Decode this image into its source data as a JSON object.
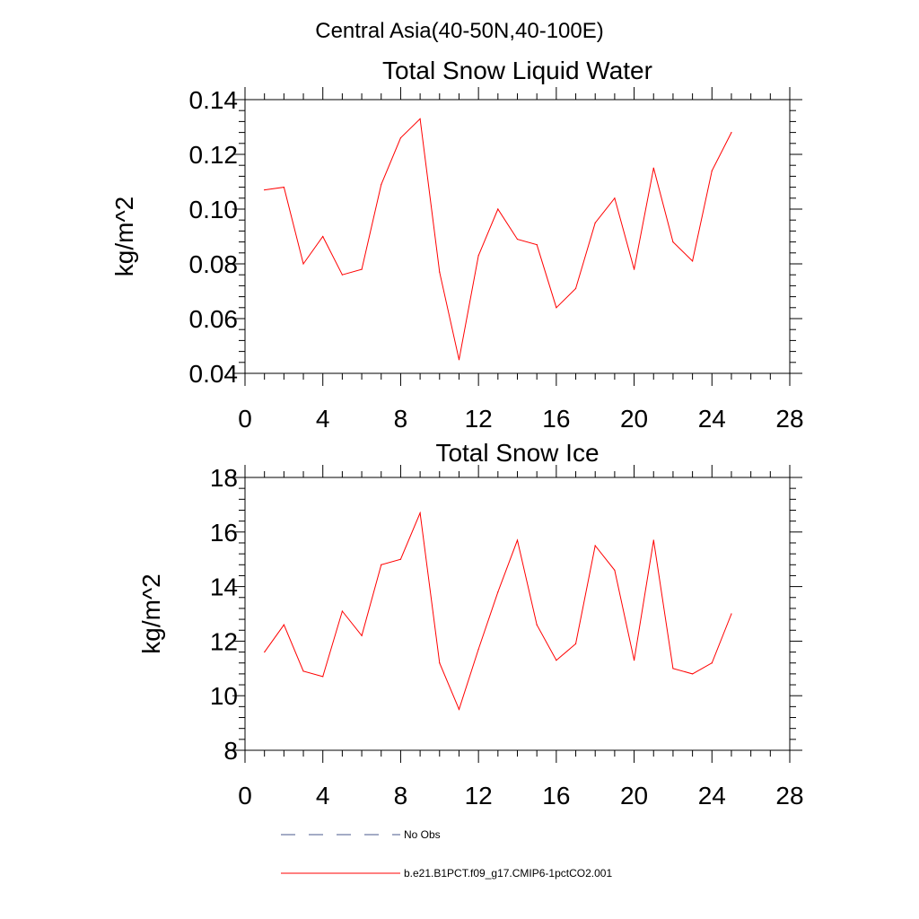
{
  "figure": {
    "suptitle": "Central Asia(40-50N,40-100E)"
  },
  "chart_data": [
    {
      "type": "line",
      "title": "Total Snow Liquid Water",
      "xlabel": "",
      "ylabel": "kg/m^2",
      "xlim": [
        0,
        28
      ],
      "ylim": [
        0.04,
        0.14
      ],
      "xticks": [
        0,
        4,
        8,
        12,
        16,
        20,
        24,
        28
      ],
      "yticks": [
        0.04,
        0.06,
        0.08,
        0.1,
        0.12,
        0.14
      ],
      "ytick_labels": [
        "0.04",
        "0.06",
        "0.08",
        "0.10",
        "0.12",
        "0.14"
      ],
      "grid": false,
      "series": [
        {
          "name": "b.e21.B1PCT.f09_g17.CMIP6-1pctCO2.001",
          "color": "#ff0000",
          "x": [
            1,
            2,
            3,
            4,
            5,
            6,
            7,
            8,
            9,
            10,
            11,
            12,
            13,
            14,
            15,
            16,
            17,
            18,
            19,
            20,
            21,
            22,
            23,
            24,
            25
          ],
          "y": [
            0.107,
            0.108,
            0.08,
            0.09,
            0.076,
            0.078,
            0.109,
            0.126,
            0.133,
            0.077,
            0.045,
            0.083,
            0.1,
            0.089,
            0.087,
            0.064,
            0.071,
            0.095,
            0.104,
            0.078,
            0.115,
            0.088,
            0.081,
            0.114,
            0.128
          ]
        }
      ]
    },
    {
      "type": "line",
      "title": "Total Snow Ice",
      "xlabel": "",
      "ylabel": "kg/m^2",
      "xlim": [
        0,
        28
      ],
      "ylim": [
        8,
        18
      ],
      "xticks": [
        0,
        4,
        8,
        12,
        16,
        20,
        24,
        28
      ],
      "yticks": [
        8,
        10,
        12,
        14,
        16,
        18
      ],
      "ytick_labels": [
        "8",
        "10",
        "12",
        "14",
        "16",
        "18"
      ],
      "grid": false,
      "series": [
        {
          "name": "b.e21.B1PCT.f09_g17.CMIP6-1pctCO2.001",
          "color": "#ff0000",
          "x": [
            1,
            2,
            3,
            4,
            5,
            6,
            7,
            8,
            9,
            10,
            11,
            12,
            13,
            14,
            15,
            16,
            17,
            18,
            19,
            20,
            21,
            22,
            23,
            24,
            25
          ],
          "y": [
            11.6,
            12.6,
            10.9,
            10.7,
            13.1,
            12.2,
            14.8,
            15.0,
            16.7,
            11.2,
            9.5,
            11.7,
            13.8,
            15.7,
            12.6,
            11.3,
            11.9,
            15.5,
            14.6,
            11.3,
            15.7,
            11.0,
            10.8,
            11.2,
            13.0
          ]
        }
      ]
    }
  ],
  "legend": {
    "placement": "bottom",
    "items": [
      {
        "label": "No Obs",
        "color": "#4a5a8c",
        "style": "dashed"
      },
      {
        "label": "b.e21.B1PCT.f09_g17.CMIP6-1pctCO2.001",
        "color": "#ff0000",
        "style": "solid"
      }
    ]
  }
}
